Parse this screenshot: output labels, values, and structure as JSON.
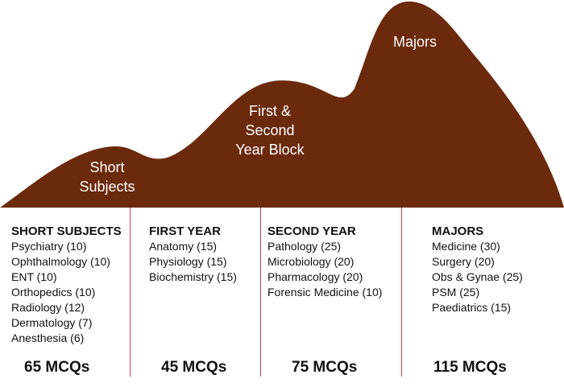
{
  "mountain": {
    "color": "#6b2a0c",
    "labels": {
      "short": [
        "Short",
        "Subjects"
      ],
      "first_second": [
        "First &",
        "Second",
        "Year Block"
      ],
      "majors": [
        "Majors"
      ]
    }
  },
  "columns": [
    {
      "heading": "SHORT SUBJECTS",
      "items": [
        "Psychiatry (10)",
        "Ophthalmology (10)",
        "ENT (10)",
        "Orthopedics (10)",
        "Radiology (12)",
        "Dermatology (7)",
        "Anesthesia (6)"
      ],
      "mcq": "65 MCQs"
    },
    {
      "heading": "FIRST YEAR",
      "items": [
        "Anatomy (15)",
        "Physiology (15)",
        "Biochemistry (15)"
      ],
      "mcq": "45 MCQs"
    },
    {
      "heading": "SECOND YEAR",
      "items": [
        "Pathology (25)",
        "Microbiology (20)",
        "Pharmacology (20)",
        "Forensic Medicine (10)"
      ],
      "mcq": "75 MCQs"
    },
    {
      "heading": "MAJORS",
      "items": [
        "Medicine (30)",
        "Surgery (20)",
        "Obs & Gynae (25)",
        "PSM (25)",
        "Paediatrics (15)"
      ],
      "mcq": "115 MCQs"
    }
  ]
}
